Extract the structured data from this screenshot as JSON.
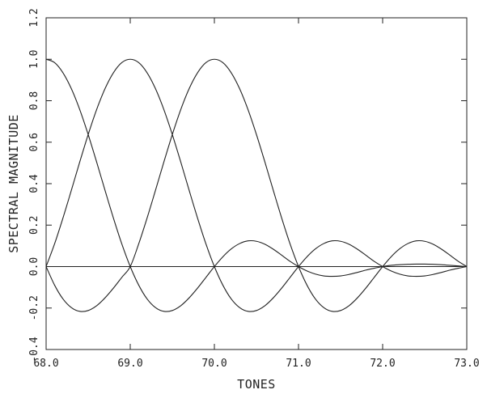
{
  "chart_data": {
    "type": "line",
    "title": "",
    "xlabel": "TONES",
    "ylabel": "SPECTRAL MAGNITUDE",
    "xlim": [
      68.0,
      73.0
    ],
    "ylim": [
      -0.4,
      1.2
    ],
    "x_ticks": [
      68.0,
      69.0,
      70.0,
      71.0,
      72.0,
      73.0
    ],
    "x_tick_labels": [
      "68.0",
      "69.0",
      "70.0",
      "71.0",
      "72.0",
      "73.0"
    ],
    "y_ticks": [
      -0.4,
      -0.2,
      0.0,
      0.2,
      0.4,
      0.6,
      0.8,
      1.0,
      1.2
    ],
    "y_tick_labels": [
      "-0.4",
      "-0.2",
      "0.0",
      "0.2",
      "0.4",
      "0.6",
      "0.8",
      "1.0",
      "1.2"
    ],
    "grid": false,
    "series": [
      {
        "x": [
          68.0,
          68.1,
          68.2,
          68.3,
          68.4,
          68.5,
          68.6,
          68.7,
          68.8,
          68.9,
          69.0,
          69.1,
          69.2,
          69.3,
          69.4,
          69.5,
          69.6,
          69.7,
          69.8,
          69.9,
          70.0,
          70.1,
          70.2,
          70.3,
          70.4,
          70.5,
          70.6,
          70.7,
          70.8,
          70.9,
          71.0,
          71.1,
          71.2,
          71.3,
          71.4,
          71.5,
          71.6,
          71.7,
          71.8,
          71.9,
          72.0,
          72.1,
          72.2,
          72.3,
          72.4,
          72.5,
          72.6,
          72.7,
          72.8,
          72.9,
          73.0
        ],
        "y": [
          1.0,
          0.984,
          0.935,
          0.858,
          0.757,
          0.637,
          0.505,
          0.368,
          0.234,
          0.109,
          0.0,
          -0.089,
          -0.156,
          -0.198,
          -0.216,
          -0.212,
          -0.189,
          -0.151,
          -0.104,
          -0.052,
          0.0,
          0.047,
          0.085,
          0.111,
          0.124,
          0.122,
          0.108,
          0.084,
          0.055,
          0.025,
          0.0,
          -0.021,
          -0.036,
          -0.045,
          -0.047,
          -0.045,
          -0.038,
          -0.028,
          -0.017,
          -0.008,
          0.0,
          0.006,
          0.009,
          0.011,
          0.012,
          0.012,
          0.011,
          0.009,
          0.006,
          0.003,
          0.0
        ]
      },
      {
        "x": [
          68.0,
          68.1,
          68.2,
          68.3,
          68.4,
          68.5,
          68.6,
          68.7,
          68.8,
          68.9,
          69.0,
          69.1,
          69.2,
          69.3,
          69.4,
          69.5,
          69.6,
          69.7,
          69.8,
          69.9,
          70.0,
          70.1,
          70.2,
          70.3,
          70.4,
          70.5,
          70.6,
          70.7,
          70.8,
          70.9,
          71.0,
          71.1,
          71.2,
          71.3,
          71.4,
          71.5,
          71.6,
          71.7,
          71.8,
          71.9,
          72.0,
          72.1,
          72.2,
          72.3,
          72.4,
          72.5,
          72.6,
          72.7,
          72.8,
          72.9,
          73.0
        ],
        "y": [
          0.0,
          0.109,
          0.234,
          0.368,
          0.505,
          0.637,
          0.757,
          0.858,
          0.935,
          0.984,
          1.0,
          0.984,
          0.935,
          0.858,
          0.757,
          0.637,
          0.505,
          0.368,
          0.234,
          0.109,
          0.0,
          -0.089,
          -0.156,
          -0.198,
          -0.216,
          -0.212,
          -0.189,
          -0.151,
          -0.104,
          -0.052,
          0.0,
          0.047,
          0.085,
          0.111,
          0.124,
          0.122,
          0.108,
          0.084,
          0.055,
          0.025,
          0.0,
          -0.021,
          -0.036,
          -0.045,
          -0.047,
          -0.045,
          -0.038,
          -0.028,
          -0.017,
          -0.008,
          0.0
        ]
      },
      {
        "x": [
          68.0,
          68.1,
          68.2,
          68.3,
          68.4,
          68.5,
          68.6,
          68.7,
          68.8,
          68.9,
          69.0,
          69.1,
          69.2,
          69.3,
          69.4,
          69.5,
          69.6,
          69.7,
          69.8,
          69.9,
          70.0,
          70.1,
          70.2,
          70.3,
          70.4,
          70.5,
          70.6,
          70.7,
          70.8,
          70.9,
          71.0,
          71.1,
          71.2,
          71.3,
          71.4,
          71.5,
          71.6,
          71.7,
          71.8,
          71.9,
          72.0,
          72.1,
          72.2,
          72.3,
          72.4,
          72.5,
          72.6,
          72.7,
          72.8,
          72.9,
          73.0
        ],
        "y": [
          0.0,
          -0.089,
          -0.156,
          -0.198,
          -0.216,
          -0.212,
          -0.189,
          -0.151,
          -0.104,
          -0.052,
          0.0,
          0.109,
          0.234,
          0.368,
          0.505,
          0.637,
          0.757,
          0.858,
          0.935,
          0.984,
          1.0,
          0.984,
          0.935,
          0.858,
          0.757,
          0.637,
          0.505,
          0.368,
          0.234,
          0.109,
          0.0,
          -0.089,
          -0.156,
          -0.198,
          -0.216,
          -0.212,
          -0.189,
          -0.151,
          -0.104,
          -0.052,
          0.0,
          0.047,
          0.085,
          0.111,
          0.124,
          0.122,
          0.108,
          0.084,
          0.055,
          0.025,
          0.0
        ]
      }
    ]
  }
}
